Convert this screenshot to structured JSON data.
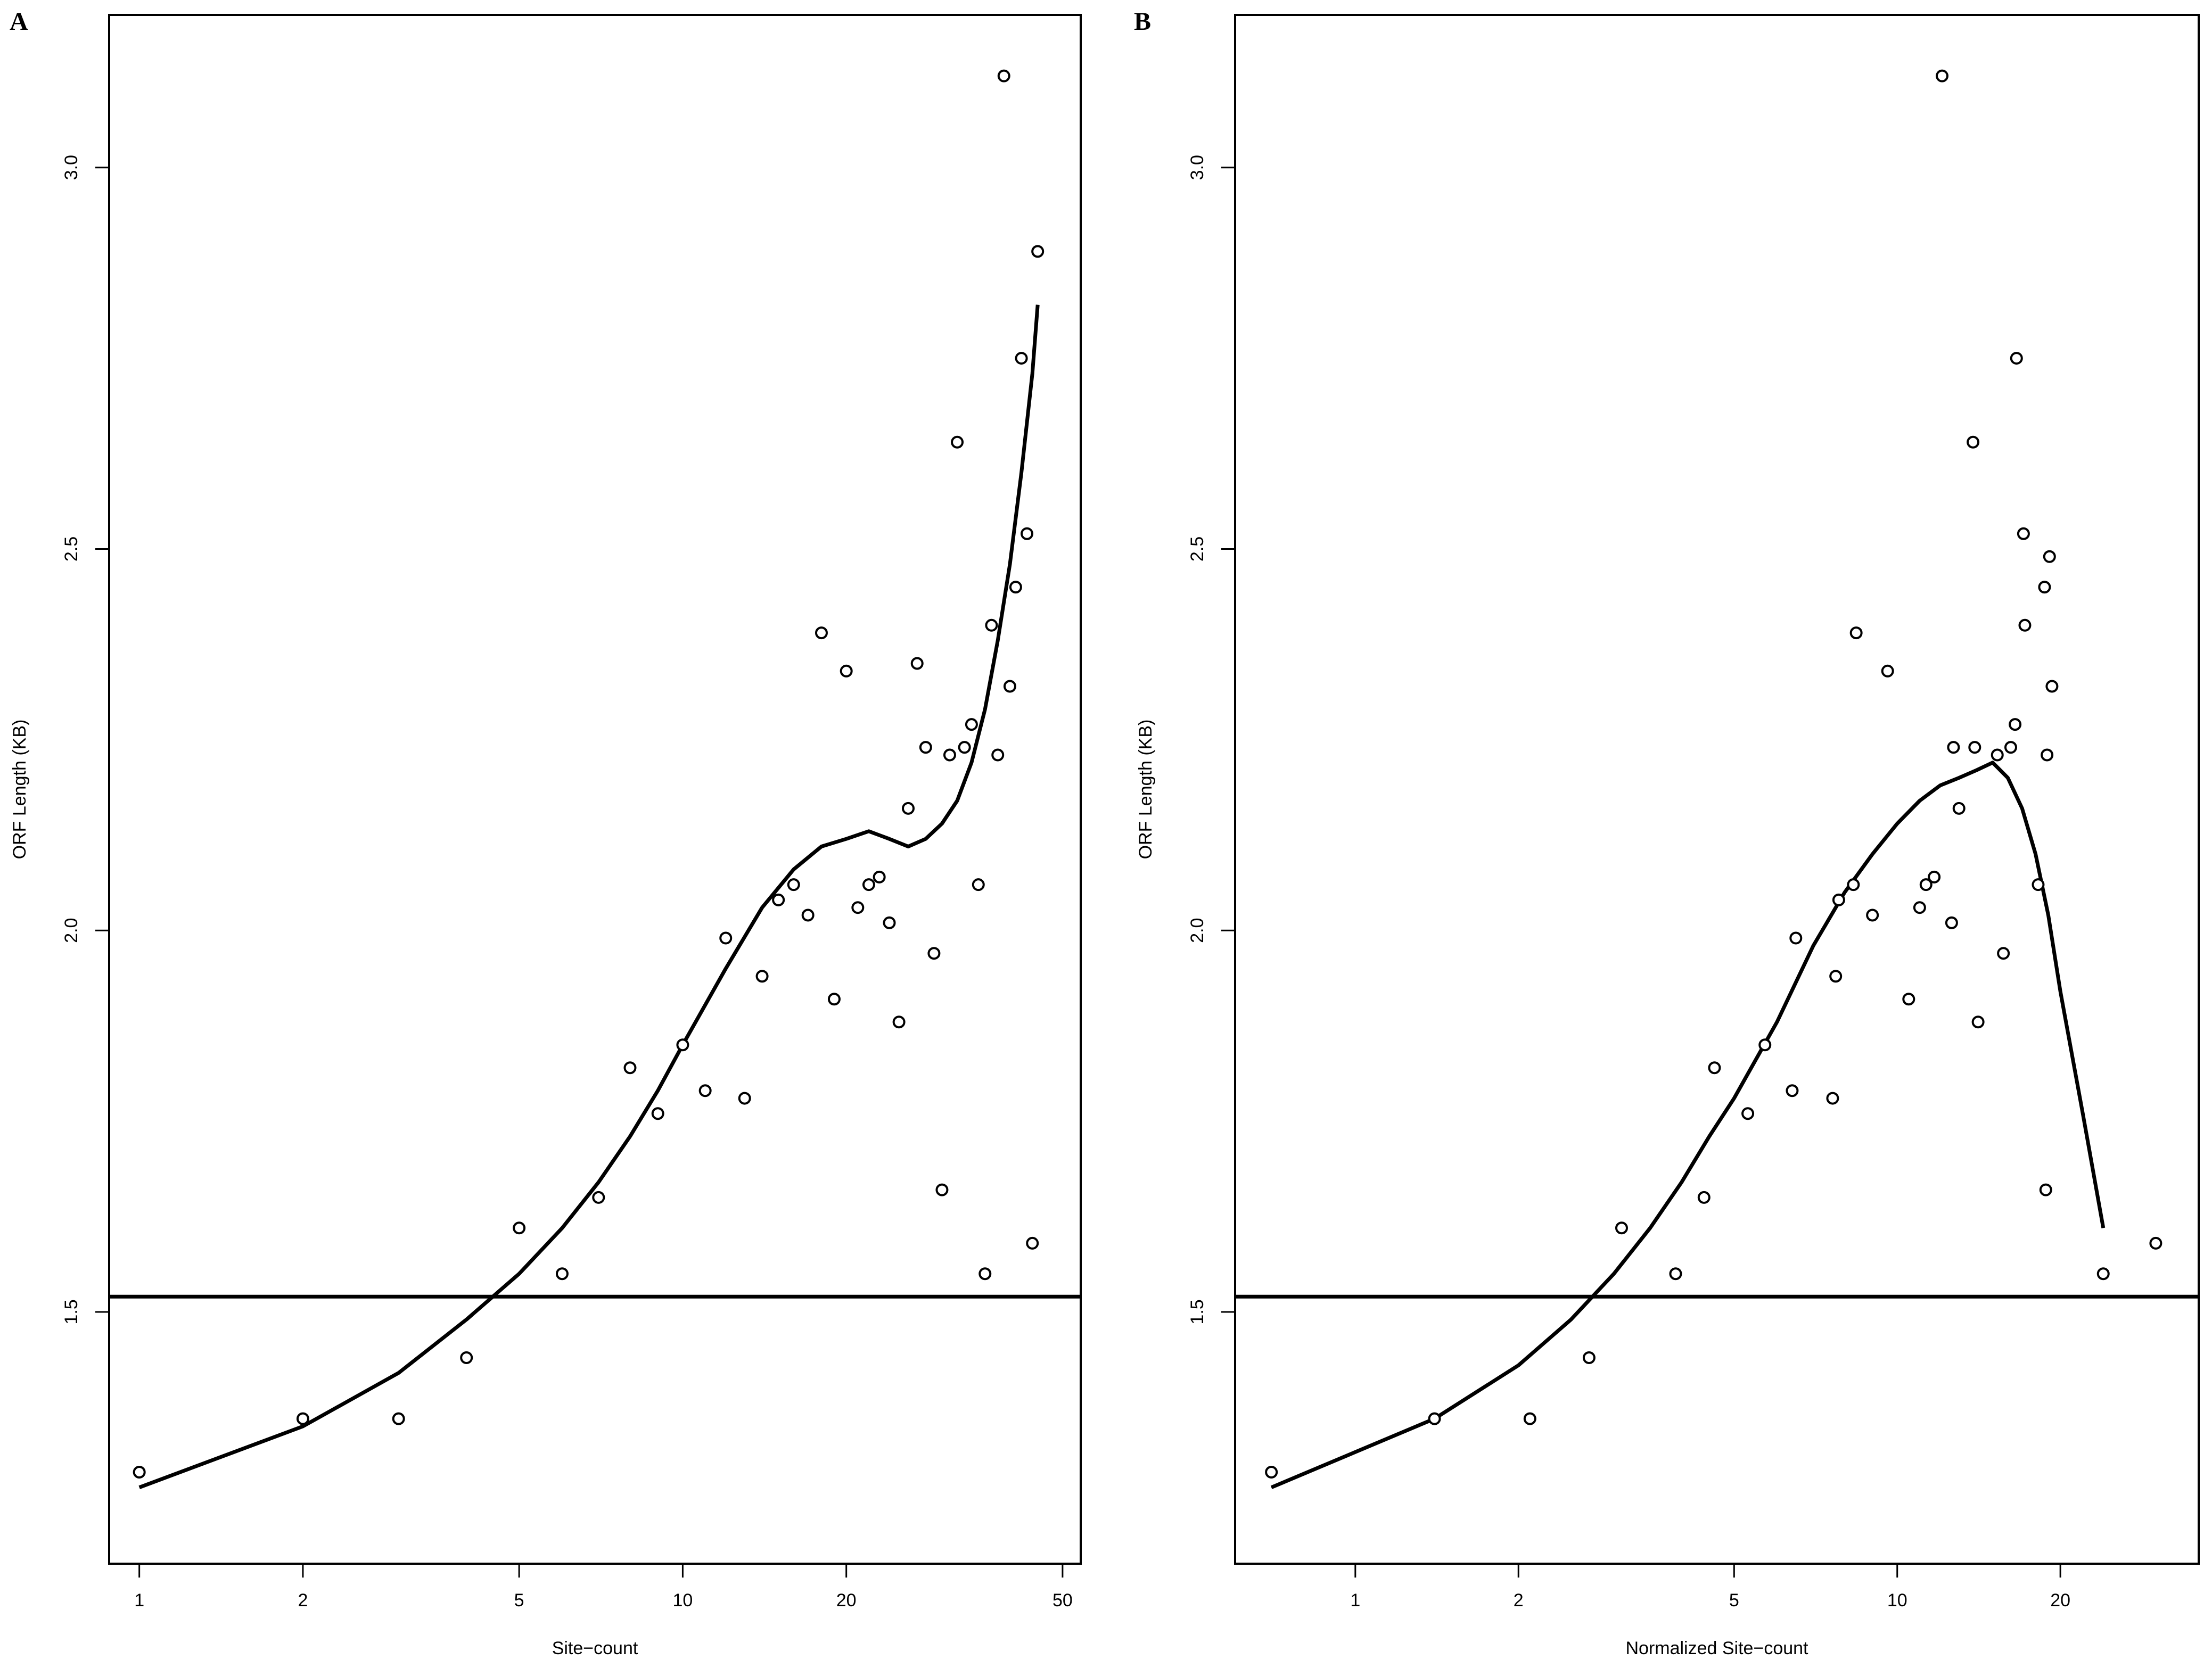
{
  "figure": {
    "panels": [
      {
        "letter": "A"
      },
      {
        "letter": "B"
      }
    ]
  },
  "chart_data": [
    {
      "panel": "A",
      "type": "scatter",
      "xlabel": "Site−count",
      "ylabel": "ORF Length (KB)",
      "x_scale": "log",
      "xlim": [
        0.88,
        54
      ],
      "ylim": [
        1.17,
        3.2
      ],
      "x_ticks": [
        1,
        2,
        5,
        10,
        20,
        50
      ],
      "y_ticks": [
        1.5,
        2.0,
        2.5,
        3.0
      ],
      "x_tick_labels": [
        "1",
        "2",
        "5",
        "10",
        "20",
        "50"
      ],
      "y_tick_labels": [
        "1.5",
        "2.0",
        "2.5",
        "3.0"
      ],
      "hline": 1.52,
      "points": [
        {
          "x": 1,
          "y": 1.29
        },
        {
          "x": 2,
          "y": 1.36
        },
        {
          "x": 3,
          "y": 1.36
        },
        {
          "x": 4,
          "y": 1.44
        },
        {
          "x": 5,
          "y": 1.61
        },
        {
          "x": 6,
          "y": 1.55
        },
        {
          "x": 7,
          "y": 1.65
        },
        {
          "x": 8,
          "y": 1.82
        },
        {
          "x": 9,
          "y": 1.76
        },
        {
          "x": 10,
          "y": 1.85
        },
        {
          "x": 11,
          "y": 1.79
        },
        {
          "x": 12,
          "y": 1.99
        },
        {
          "x": 13,
          "y": 1.78
        },
        {
          "x": 14,
          "y": 1.94
        },
        {
          "x": 15,
          "y": 2.04
        },
        {
          "x": 16,
          "y": 2.06
        },
        {
          "x": 17,
          "y": 2.02
        },
        {
          "x": 18,
          "y": 2.39
        },
        {
          "x": 19,
          "y": 1.91
        },
        {
          "x": 20,
          "y": 2.34
        },
        {
          "x": 21,
          "y": 2.03
        },
        {
          "x": 22,
          "y": 2.06
        },
        {
          "x": 23,
          "y": 2.07
        },
        {
          "x": 24,
          "y": 2.01
        },
        {
          "x": 25,
          "y": 1.88
        },
        {
          "x": 26,
          "y": 2.16
        },
        {
          "x": 27,
          "y": 2.35
        },
        {
          "x": 28,
          "y": 2.24
        },
        {
          "x": 29,
          "y": 1.97
        },
        {
          "x": 30,
          "y": 1.66
        },
        {
          "x": 31,
          "y": 2.23
        },
        {
          "x": 32,
          "y": 2.64
        },
        {
          "x": 33,
          "y": 2.24
        },
        {
          "x": 34,
          "y": 2.27
        },
        {
          "x": 35,
          "y": 2.06
        },
        {
          "x": 36,
          "y": 1.55
        },
        {
          "x": 37,
          "y": 2.4
        },
        {
          "x": 38,
          "y": 2.23
        },
        {
          "x": 39,
          "y": 3.12
        },
        {
          "x": 40,
          "y": 2.32
        },
        {
          "x": 41,
          "y": 2.45
        },
        {
          "x": 42,
          "y": 2.75
        },
        {
          "x": 43,
          "y": 2.52
        },
        {
          "x": 44,
          "y": 1.59
        },
        {
          "x": 45,
          "y": 2.89
        }
      ],
      "smooth_line": [
        [
          1,
          1.27
        ],
        [
          2,
          1.35
        ],
        [
          3,
          1.42
        ],
        [
          4,
          1.49
        ],
        [
          5,
          1.55
        ],
        [
          6,
          1.61
        ],
        [
          7,
          1.67
        ],
        [
          8,
          1.73
        ],
        [
          9,
          1.79
        ],
        [
          10,
          1.85
        ],
        [
          12,
          1.95
        ],
        [
          14,
          2.03
        ],
        [
          16,
          2.08
        ],
        [
          18,
          2.11
        ],
        [
          20,
          2.12
        ],
        [
          22,
          2.13
        ],
        [
          24,
          2.12
        ],
        [
          26,
          2.11
        ],
        [
          28,
          2.12
        ],
        [
          30,
          2.14
        ],
        [
          32,
          2.17
        ],
        [
          34,
          2.22
        ],
        [
          36,
          2.29
        ],
        [
          38,
          2.38
        ],
        [
          40,
          2.48
        ],
        [
          42,
          2.6
        ],
        [
          44,
          2.73
        ],
        [
          45,
          2.82
        ]
      ]
    },
    {
      "panel": "B",
      "type": "scatter",
      "xlabel": "Normalized Site−count",
      "ylabel": "ORF Length (KB)",
      "x_scale": "log",
      "xlim": [
        0.6,
        36
      ],
      "ylim": [
        1.17,
        3.2
      ],
      "x_ticks": [
        1,
        2,
        5,
        10,
        20
      ],
      "y_ticks": [
        1.5,
        2.0,
        2.5,
        3.0
      ],
      "x_tick_labels": [
        "1",
        "2",
        "5",
        "10",
        "20"
      ],
      "y_tick_labels": [
        "1.5",
        "2.0",
        "2.5",
        "3.0"
      ],
      "hline": 1.52,
      "points": [
        {
          "x": 0.7,
          "y": 1.29
        },
        {
          "x": 1.4,
          "y": 1.36
        },
        {
          "x": 2.1,
          "y": 1.36
        },
        {
          "x": 2.7,
          "y": 1.44
        },
        {
          "x": 3.1,
          "y": 1.61
        },
        {
          "x": 3.9,
          "y": 1.55
        },
        {
          "x": 4.4,
          "y": 1.65
        },
        {
          "x": 4.6,
          "y": 1.82
        },
        {
          "x": 5.3,
          "y": 1.76
        },
        {
          "x": 5.7,
          "y": 1.85
        },
        {
          "x": 6.4,
          "y": 1.79
        },
        {
          "x": 6.5,
          "y": 1.99
        },
        {
          "x": 7.6,
          "y": 1.78
        },
        {
          "x": 7.7,
          "y": 1.94
        },
        {
          "x": 7.8,
          "y": 2.04
        },
        {
          "x": 8.3,
          "y": 2.06
        },
        {
          "x": 8.4,
          "y": 2.39
        },
        {
          "x": 9.0,
          "y": 2.02
        },
        {
          "x": 9.6,
          "y": 2.34
        },
        {
          "x": 10.5,
          "y": 1.91
        },
        {
          "x": 11.0,
          "y": 2.03
        },
        {
          "x": 11.3,
          "y": 2.06
        },
        {
          "x": 11.7,
          "y": 2.07
        },
        {
          "x": 12.1,
          "y": 3.12
        },
        {
          "x": 12.6,
          "y": 2.01
        },
        {
          "x": 12.7,
          "y": 2.24
        },
        {
          "x": 13.0,
          "y": 2.16
        },
        {
          "x": 13.8,
          "y": 2.64
        },
        {
          "x": 13.9,
          "y": 2.24
        },
        {
          "x": 14.1,
          "y": 1.88
        },
        {
          "x": 15.3,
          "y": 2.23
        },
        {
          "x": 15.7,
          "y": 1.97
        },
        {
          "x": 16.2,
          "y": 2.24
        },
        {
          "x": 16.5,
          "y": 2.27
        },
        {
          "x": 16.6,
          "y": 2.75
        },
        {
          "x": 17.1,
          "y": 2.52
        },
        {
          "x": 17.2,
          "y": 2.4
        },
        {
          "x": 18.2,
          "y": 2.06
        },
        {
          "x": 18.7,
          "y": 2.45
        },
        {
          "x": 18.8,
          "y": 1.66
        },
        {
          "x": 18.9,
          "y": 2.23
        },
        {
          "x": 19.1,
          "y": 2.49
        },
        {
          "x": 19.3,
          "y": 2.32
        },
        {
          "x": 24.0,
          "y": 1.55
        },
        {
          "x": 30.0,
          "y": 1.59
        }
      ],
      "smooth_line": [
        [
          0.7,
          1.27
        ],
        [
          1.4,
          1.36
        ],
        [
          2.0,
          1.43
        ],
        [
          2.5,
          1.49
        ],
        [
          3.0,
          1.55
        ],
        [
          3.5,
          1.61
        ],
        [
          4.0,
          1.67
        ],
        [
          4.5,
          1.73
        ],
        [
          5.0,
          1.78
        ],
        [
          6.0,
          1.88
        ],
        [
          7.0,
          1.98
        ],
        [
          8.0,
          2.05
        ],
        [
          9.0,
          2.1
        ],
        [
          10.0,
          2.14
        ],
        [
          11.0,
          2.17
        ],
        [
          12.0,
          2.19
        ],
        [
          13.0,
          2.2
        ],
        [
          14.0,
          2.21
        ],
        [
          15.0,
          2.22
        ],
        [
          16.0,
          2.2
        ],
        [
          17.0,
          2.16
        ],
        [
          18.0,
          2.1
        ],
        [
          19.0,
          2.02
        ],
        [
          20.0,
          1.92
        ],
        [
          22.0,
          1.76
        ],
        [
          24.0,
          1.61
        ]
      ]
    }
  ]
}
